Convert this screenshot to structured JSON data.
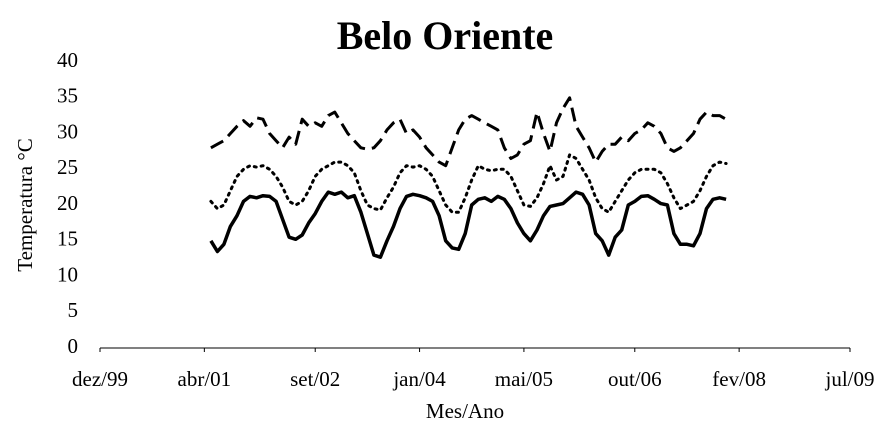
{
  "chart_data": {
    "type": "line",
    "title": "Belo Oriente",
    "xlabel": "Mes/Ano",
    "ylabel": "Temperatura  °C",
    "x": [
      "2001-05",
      "2001-06",
      "2001-07",
      "2001-08",
      "2001-09",
      "2001-10",
      "2001-11",
      "2001-12",
      "2002-01",
      "2002-02",
      "2002-03",
      "2002-04",
      "2002-05",
      "2002-06",
      "2002-07",
      "2002-08",
      "2002-09",
      "2002-10",
      "2002-11",
      "2002-12",
      "2003-01",
      "2003-02",
      "2003-03",
      "2003-04",
      "2003-05",
      "2003-06",
      "2003-07",
      "2003-08",
      "2003-09",
      "2003-10",
      "2003-11",
      "2003-12",
      "2004-01",
      "2004-02",
      "2004-03",
      "2004-04",
      "2004-05",
      "2004-06",
      "2004-07",
      "2004-08",
      "2004-09",
      "2004-10",
      "2004-11",
      "2004-12",
      "2005-01",
      "2005-02",
      "2005-03",
      "2005-04",
      "2005-05",
      "2005-06",
      "2005-07",
      "2005-08",
      "2005-09",
      "2005-10",
      "2005-11",
      "2005-12",
      "2006-01",
      "2006-02",
      "2006-03",
      "2006-04",
      "2006-05",
      "2006-06",
      "2006-07",
      "2006-08",
      "2006-09",
      "2006-10",
      "2006-11",
      "2006-12",
      "2007-01",
      "2007-02",
      "2007-03",
      "2007-04",
      "2007-05",
      "2007-06",
      "2007-07",
      "2007-08",
      "2007-09",
      "2007-10",
      "2007-11",
      "2007-12"
    ],
    "series": [
      {
        "color": "#000000",
        "style": "dashed",
        "values": [
          28,
          28.5,
          29,
          30,
          31,
          31.8,
          31,
          32.2,
          32,
          30,
          29,
          28,
          29.5,
          28.5,
          32,
          31,
          31.5,
          31,
          32.5,
          33,
          31.5,
          30,
          29,
          28,
          27.8,
          28,
          29,
          30.5,
          31.5,
          32,
          30,
          30.5,
          29.5,
          28,
          27,
          26,
          25.5,
          28,
          30.5,
          32,
          32.5,
          32,
          31.5,
          31,
          30.5,
          28,
          26.5,
          27,
          28.5,
          29,
          33,
          30,
          27.5,
          31.5,
          33.5,
          35,
          31,
          29.5,
          28,
          26,
          27.5,
          28.5,
          28.5,
          29.5,
          29,
          30,
          30.5,
          31.5,
          31,
          30,
          28,
          27.5,
          28,
          29,
          30,
          32,
          33,
          32.5,
          32.5,
          32
        ]
      },
      {
        "color": "#000000",
        "style": "dotted",
        "values": [
          20.5,
          19.5,
          20,
          22,
          24,
          25,
          25.5,
          25.3,
          25.5,
          25,
          24,
          22.5,
          20.5,
          20,
          20.5,
          22,
          24,
          25,
          25.5,
          26,
          26,
          25.5,
          24.5,
          22,
          20,
          19.5,
          19.3,
          21,
          22.5,
          24.5,
          25.5,
          25.3,
          25.5,
          25,
          24,
          22,
          20,
          19,
          19,
          21,
          23.5,
          25.5,
          25,
          24.8,
          25,
          25,
          24,
          22,
          20,
          19.8,
          21,
          23,
          25.5,
          23.5,
          24,
          27,
          26.5,
          25,
          23.5,
          21,
          19.5,
          19,
          20.5,
          22,
          23.5,
          24.5,
          25,
          25,
          25,
          24.5,
          23,
          21,
          19.5,
          20,
          20.5,
          22,
          24,
          25.5,
          26,
          25.8
        ]
      },
      {
        "color": "#000000",
        "style": "solid",
        "values": [
          15,
          13.5,
          14.5,
          17,
          18.5,
          20.5,
          21.2,
          21,
          21.3,
          21.2,
          20.5,
          18,
          15.5,
          15.2,
          15.8,
          17.5,
          18.8,
          20.5,
          21.8,
          21.5,
          21.8,
          21,
          21.3,
          19,
          16,
          13,
          12.7,
          15,
          17,
          19.5,
          21.2,
          21.5,
          21.3,
          21,
          20.5,
          18.5,
          15,
          14,
          13.8,
          16,
          20,
          20.8,
          21,
          20.5,
          21.2,
          20.8,
          19.5,
          17.5,
          16,
          15,
          16.5,
          18.5,
          19.8,
          20,
          20.2,
          21,
          21.8,
          21.5,
          20,
          16,
          15,
          13,
          15.5,
          16.5,
          20,
          20.5,
          21.2,
          21.3,
          20.8,
          20.2,
          20,
          16,
          14.5,
          14.5,
          14.3,
          16,
          19.5,
          20.8,
          21,
          20.8
        ]
      }
    ],
    "xlim": [
      "1999-12",
      "2009-07"
    ],
    "xticks": [
      {
        "value": "1999-12",
        "label": "dez/99"
      },
      {
        "value": "2001-04",
        "label": "abr/01"
      },
      {
        "value": "2002-09",
        "label": "set/02"
      },
      {
        "value": "2004-01",
        "label": "jan/04"
      },
      {
        "value": "2005-05",
        "label": "mai/05"
      },
      {
        "value": "2006-10",
        "label": "out/06"
      },
      {
        "value": "2008-02",
        "label": "fev/08"
      },
      {
        "value": "2009-07",
        "label": "jul/09"
      }
    ],
    "ylim": [
      0,
      40
    ],
    "yticks": [
      0,
      5,
      10,
      15,
      20,
      25,
      30,
      35,
      40
    ],
    "grid": false
  }
}
